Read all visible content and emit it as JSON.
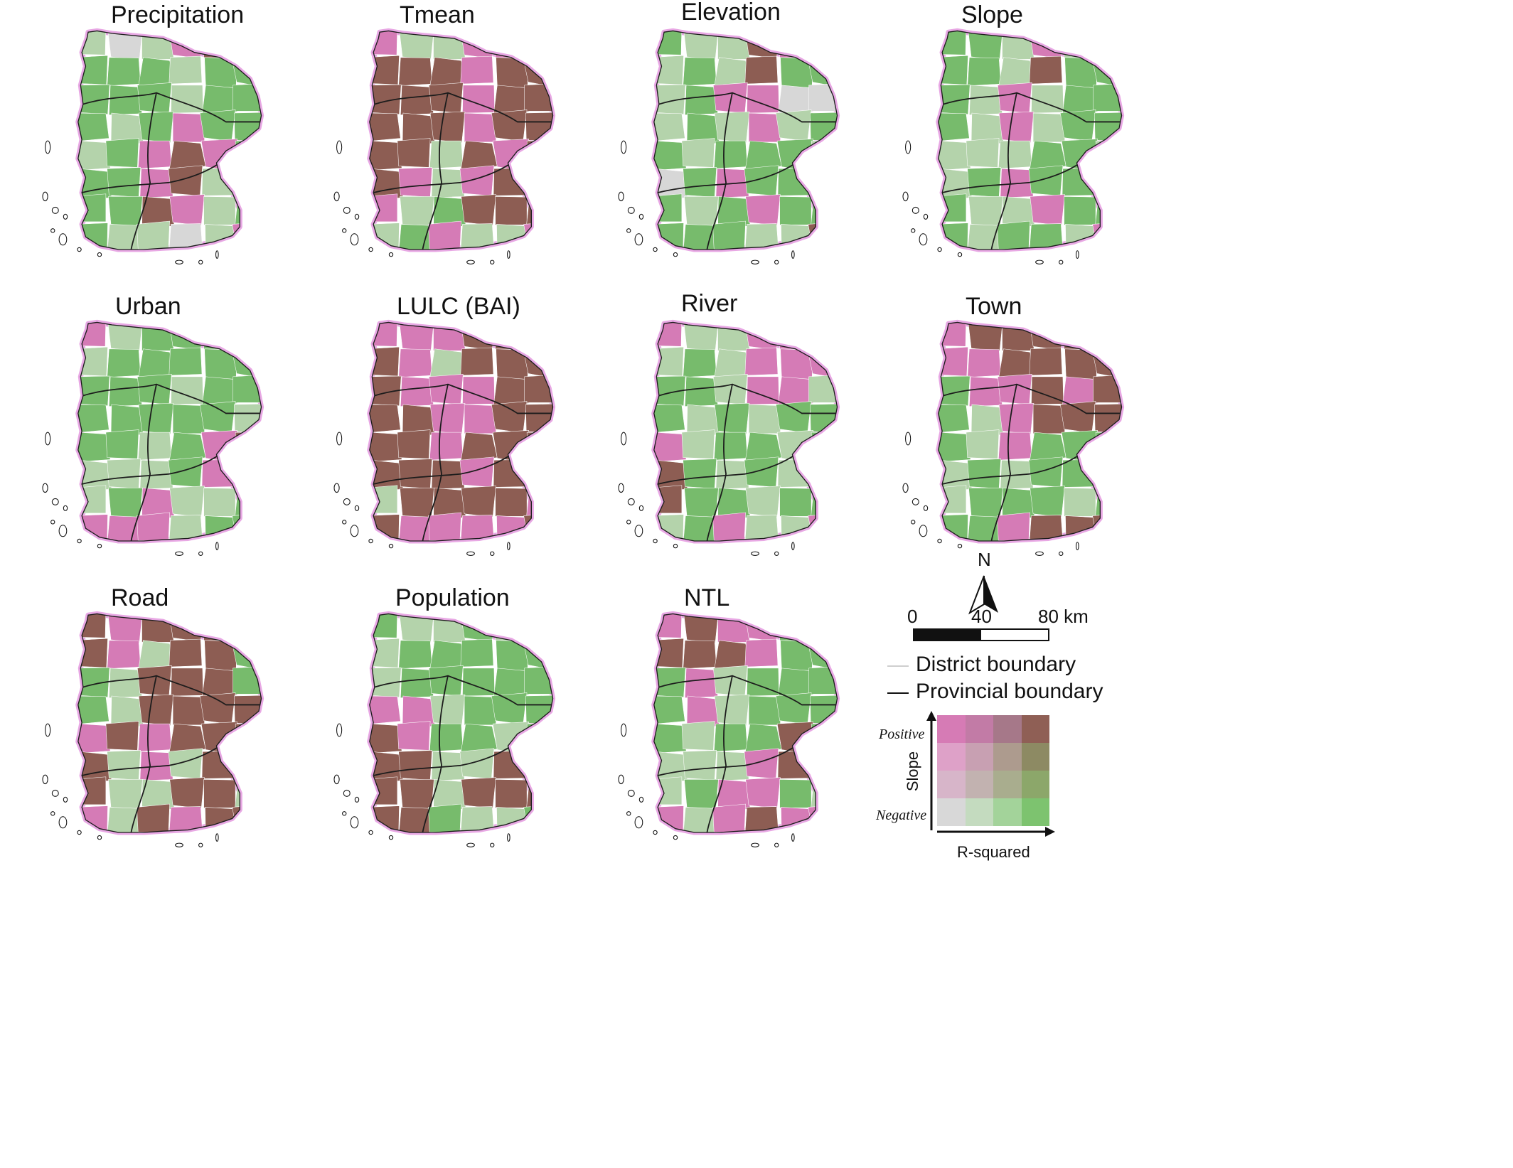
{
  "panels": [
    {
      "title": "Precipitation",
      "pattern": [
        "Lgr",
        "Gra",
        "Lgr",
        "Pnk",
        "Brn",
        "Pnk",
        "Grn",
        "Grn",
        "Grn",
        "Lgr",
        "Grn",
        "Grn",
        "Grn",
        "Grn",
        "Grn",
        "Lgr",
        "Grn",
        "Grn",
        "Grn",
        "Lgr",
        "Grn",
        "Pnk",
        "Grn",
        "Grn",
        "Lgr",
        "Grn",
        "Pnk",
        "Brn",
        "Pnk",
        "Grn",
        "Grn",
        "Grn",
        "Pnk",
        "Brn",
        "Lgr",
        "Lgr",
        "Grn",
        "Grn",
        "Brn",
        "Pnk",
        "Lgr",
        "Grn",
        "Grn",
        "Lgr"
      ]
    },
    {
      "title": "Tmean",
      "pattern": [
        "Pnk",
        "Lgr",
        "Lgr",
        "Pnk",
        "Pnk",
        "Pnk",
        "Brn",
        "Brn",
        "Brn",
        "Pnk",
        "Brn",
        "Brn",
        "Brn",
        "Brn",
        "Brn",
        "Pnk",
        "Brn",
        "Brn",
        "Brn",
        "Brn",
        "Brn",
        "Pnk",
        "Brn",
        "Brn",
        "Brn",
        "Brn",
        "Lgr",
        "Brn",
        "Pnk",
        "Brn",
        "Brn",
        "Pnk",
        "Lgr",
        "Pnk",
        "Brn",
        "Brn",
        "Pnk",
        "Lgr",
        "Grn",
        "Brn",
        "Brn",
        "Brn",
        "Lgr",
        "Grn"
      ]
    },
    {
      "title": "Elevation",
      "pattern": [
        "Grn",
        "Lgr",
        "Lgr",
        "Brn",
        "Pnk",
        "Pnk",
        "Lgr",
        "Grn",
        "Lgr",
        "Brn",
        "Grn",
        "Grn",
        "Lgr",
        "Grn",
        "Pnk",
        "Pnk",
        "Gra",
        "Gra",
        "Lgr",
        "Grn",
        "Lgr",
        "Pnk",
        "Lgr",
        "Grn",
        "Grn",
        "Lgr",
        "Grn",
        "Grn",
        "Grn",
        "Lgr",
        "Gra",
        "Grn",
        "Pnk",
        "Grn",
        "Grn",
        "Grn",
        "Grn",
        "Lgr",
        "Grn",
        "Pnk",
        "Grn",
        "Grn",
        "Grn",
        "Grn"
      ]
    },
    {
      "title": "Slope",
      "pattern": [
        "Grn",
        "Grn",
        "Lgr",
        "Pnk",
        "Lgr",
        "Lgr",
        "Grn",
        "Grn",
        "Lgr",
        "Brn",
        "Grn",
        "Grn",
        "Grn",
        "Lgr",
        "Pnk",
        "Lgr",
        "Grn",
        "Grn",
        "Grn",
        "Lgr",
        "Pnk",
        "Lgr",
        "Grn",
        "Grn",
        "Lgr",
        "Lgr",
        "Lgr",
        "Grn",
        "Grn",
        "Lgr",
        "Lgr",
        "Grn",
        "Pnk",
        "Grn",
        "Grn",
        "Grn",
        "Grn",
        "Lgr",
        "Lgr",
        "Pnk",
        "Grn",
        "Grn",
        "Grn",
        "Lgr"
      ]
    },
    {
      "title": "Urban",
      "pattern": [
        "Pnk",
        "Lgr",
        "Grn",
        "Grn",
        "Grn",
        "Grn",
        "Lgr",
        "Grn",
        "Grn",
        "Grn",
        "Grn",
        "Grn",
        "Grn",
        "Grn",
        "Grn",
        "Lgr",
        "Grn",
        "Grn",
        "Grn",
        "Grn",
        "Grn",
        "Grn",
        "Grn",
        "Lgr",
        "Grn",
        "Grn",
        "Lgr",
        "Grn",
        "Pnk",
        "Brn",
        "Lgr",
        "Lgr",
        "Lgr",
        "Grn",
        "Pnk",
        "Brn",
        "Lgr",
        "Grn",
        "Pnk",
        "Lgr",
        "Lgr",
        "Grn",
        "Pnk",
        "Pnk"
      ]
    },
    {
      "title": "LULC (BAI)",
      "pattern": [
        "Pnk",
        "Pnk",
        "Pnk",
        "Brn",
        "Brn",
        "Brn",
        "Brn",
        "Pnk",
        "Lgr",
        "Brn",
        "Brn",
        "Brn",
        "Brn",
        "Pnk",
        "Pnk",
        "Pnk",
        "Brn",
        "Brn",
        "Brn",
        "Brn",
        "Pnk",
        "Pnk",
        "Brn",
        "Brn",
        "Brn",
        "Brn",
        "Pnk",
        "Brn",
        "Brn",
        "Brn",
        "Brn",
        "Brn",
        "Brn",
        "Pnk",
        "Brn",
        "Brn",
        "Lgr",
        "Brn",
        "Brn",
        "Brn",
        "Brn",
        "Pnk",
        "Brn",
        "Pnk"
      ]
    },
    {
      "title": "River",
      "pattern": [
        "Pnk",
        "Lgr",
        "Lgr",
        "Pnk",
        "Pnk",
        "Pnk",
        "Lgr",
        "Grn",
        "Lgr",
        "Pnk",
        "Pnk",
        "Pnk",
        "Grn",
        "Grn",
        "Lgr",
        "Pnk",
        "Pnk",
        "Lgr",
        "Grn",
        "Lgr",
        "Grn",
        "Lgr",
        "Grn",
        "Grn",
        "Pnk",
        "Lgr",
        "Grn",
        "Grn",
        "Lgr",
        "Grn",
        "Brn",
        "Grn",
        "Lgr",
        "Grn",
        "Lgr",
        "Grn",
        "Brn",
        "Grn",
        "Grn",
        "Lgr",
        "Grn",
        "Grn",
        "Lgr",
        "Grn"
      ]
    },
    {
      "title": "Town",
      "pattern": [
        "Pnk",
        "Brn",
        "Brn",
        "Brn",
        "Brn",
        "Brn",
        "Pnk",
        "Pnk",
        "Brn",
        "Brn",
        "Brn",
        "Brn",
        "Grn",
        "Pnk",
        "Pnk",
        "Brn",
        "Pnk",
        "Brn",
        "Grn",
        "Lgr",
        "Pnk",
        "Brn",
        "Brn",
        "Brn",
        "Grn",
        "Lgr",
        "Pnk",
        "Grn",
        "Grn",
        "Grn",
        "Lgr",
        "Grn",
        "Lgr",
        "Grn",
        "Grn",
        "Grn",
        "Lgr",
        "Grn",
        "Grn",
        "Grn",
        "Lgr",
        "Grn",
        "Grn",
        "Grn"
      ]
    },
    {
      "title": "Road",
      "pattern": [
        "Brn",
        "Pnk",
        "Brn",
        "Brn",
        "Brn",
        "Brn",
        "Brn",
        "Pnk",
        "Lgr",
        "Brn",
        "Brn",
        "Grn",
        "Grn",
        "Lgr",
        "Brn",
        "Brn",
        "Brn",
        "Grn",
        "Grn",
        "Lgr",
        "Brn",
        "Brn",
        "Brn",
        "Brn",
        "Pnk",
        "Brn",
        "Pnk",
        "Brn",
        "Brn",
        "Brn",
        "Brn",
        "Lgr",
        "Pnk",
        "Lgr",
        "Brn",
        "Brn",
        "Brn",
        "Lgr",
        "Lgr",
        "Brn",
        "Brn",
        "Lgr",
        "Pnk",
        "Lgr"
      ]
    },
    {
      "title": "Population",
      "pattern": [
        "Grn",
        "Lgr",
        "Lgr",
        "Grn",
        "Lgr",
        "Lgr",
        "Lgr",
        "Grn",
        "Grn",
        "Grn",
        "Grn",
        "Grn",
        "Lgr",
        "Grn",
        "Grn",
        "Grn",
        "Grn",
        "Grn",
        "Pnk",
        "Pnk",
        "Lgr",
        "Grn",
        "Grn",
        "Grn",
        "Brn",
        "Pnk",
        "Grn",
        "Grn",
        "Lgr",
        "Grn",
        "Brn",
        "Brn",
        "Lgr",
        "Lgr",
        "Brn",
        "Brn",
        "Brn",
        "Brn",
        "Lgr",
        "Brn",
        "Brn",
        "Brn",
        "Brn",
        "Brn"
      ]
    },
    {
      "title": "NTL",
      "pattern": [
        "Pnk",
        "Brn",
        "Pnk",
        "Pnk",
        "Grn",
        "Grn",
        "Brn",
        "Brn",
        "Brn",
        "Pnk",
        "Grn",
        "Grn",
        "Grn",
        "Pnk",
        "Lgr",
        "Grn",
        "Grn",
        "Grn",
        "Grn",
        "Pnk",
        "Lgr",
        "Grn",
        "Grn",
        "Grn",
        "Grn",
        "Lgr",
        "Grn",
        "Grn",
        "Brn",
        "Grn",
        "Lgr",
        "Lgr",
        "Lgr",
        "Pnk",
        "Brn",
        "Grn",
        "Lgr",
        "Grn",
        "Pnk",
        "Pnk",
        "Grn",
        "Lgr",
        "Pnk",
        "Lgr"
      ]
    }
  ],
  "legend": {
    "north": "N",
    "scale_ticks": [
      "0",
      "40",
      "80 km"
    ],
    "district_boundary": "District boundary",
    "provincial_boundary": "Provincial boundary",
    "slope_axis": "Slope",
    "rsquared_axis": "R-squared",
    "positive": "Positive",
    "negative": "Negative"
  },
  "colors": {
    "Brn": "#8d5d53",
    "Pnk": "#d57bb6",
    "Grn": "#77bb6c",
    "Lgr": "#b4d3ab",
    "Gra": "#d7d7d7",
    "outline_glow": "#e8a8e4",
    "provincial": "#1c1c1c",
    "district": "#ffffff"
  },
  "bivariate_matrix": [
    [
      "#d67bb5",
      "#c27ba6",
      "#a67889",
      "#8f5f55"
    ],
    [
      "#dea1c8",
      "#c8a0b2",
      "#ad9b8e",
      "#8d8a63"
    ],
    [
      "#d7b5c9",
      "#c2b2b0",
      "#a9ad8e",
      "#8ca76a"
    ],
    [
      "#d8d8d8",
      "#c4dbbf",
      "#a3d39a",
      "#7dc36f"
    ]
  ]
}
